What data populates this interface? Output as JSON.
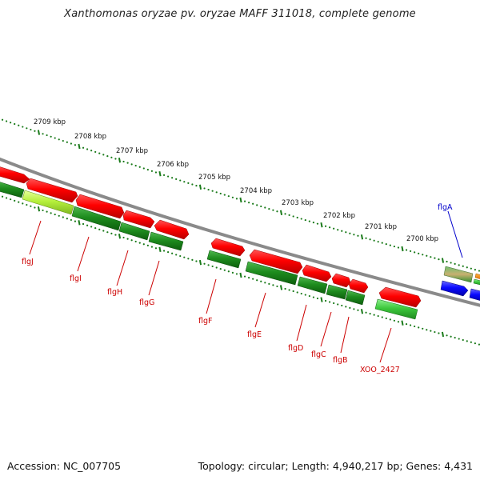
{
  "title": "Xanthomonas oryzae pv. oryzae MAFF 311018, complete genome",
  "footer": {
    "accession": "Accession: NC_007705",
    "summary": "Topology: circular; Length: 4,940,217 bp; Genes: 4,431"
  },
  "scale": {
    "ticks": [
      "2709 kbp",
      "2708 kbp",
      "2707 kbp",
      "2706 kbp",
      "2705 kbp",
      "2704 kbp",
      "2703 kbp",
      "2702 kbp",
      "2701 kbp",
      "2700 kbp"
    ]
  },
  "genes": [
    {
      "name": "flgJ",
      "color": "#cc0000"
    },
    {
      "name": "flgI",
      "color": "#cc0000"
    },
    {
      "name": "flgH",
      "color": "#cc0000"
    },
    {
      "name": "flgG",
      "color": "#cc0000"
    },
    {
      "name": "flgF",
      "color": "#cc0000"
    },
    {
      "name": "flgE",
      "color": "#cc0000"
    },
    {
      "name": "flgD",
      "color": "#cc0000"
    },
    {
      "name": "flgC",
      "color": "#cc0000"
    },
    {
      "name": "flgB",
      "color": "#cc0000"
    },
    {
      "name": "XOO_2427",
      "color": "#cc0000"
    },
    {
      "name": "flgA",
      "color": "#0000cc"
    }
  ],
  "colors": {
    "backbone": "#8a8a8a",
    "forward_cds": "#ff0000",
    "reverse_cds": "#ff0000",
    "feature_green": "#1e8c1e",
    "feature_lightgreen": "#b6f03c",
    "feature_blue": "#0a0aff",
    "tick_green": "#1a7a1a"
  }
}
